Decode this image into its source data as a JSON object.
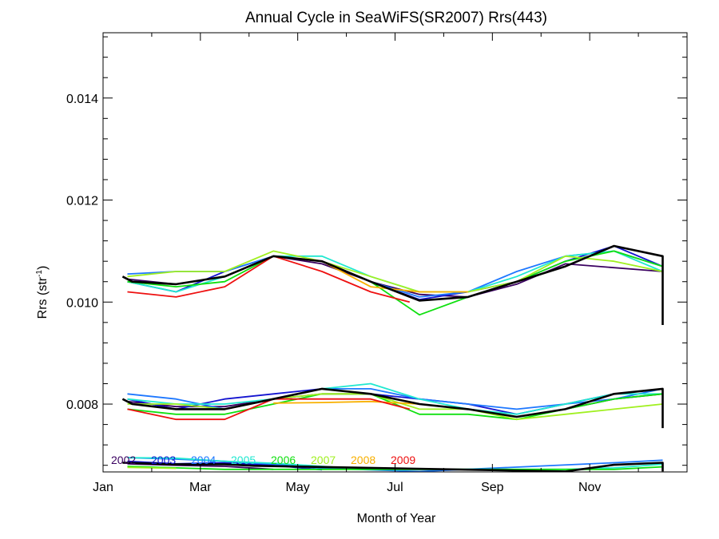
{
  "chart_data": {
    "type": "line",
    "title": "Annual Cycle in SeaWiFS(SR2007) Rrs(443)",
    "xlabel": "Month of Year",
    "ylabel_main": "Rrs (str",
    "ylabel_sup": "-1",
    "ylabel_close": ")",
    "xlim": [
      0,
      12
    ],
    "ylim": [
      0.00667,
      0.01528
    ],
    "x_ticks": [
      {
        "value": 0,
        "label": "Jan"
      },
      {
        "value": 2,
        "label": "Mar"
      },
      {
        "value": 4,
        "label": "May"
      },
      {
        "value": 6,
        "label": "Jul"
      },
      {
        "value": 8,
        "label": "Sep"
      },
      {
        "value": 10,
        "label": "Nov"
      }
    ],
    "y_ticks": [
      {
        "value": 0.008,
        "label": "0.008"
      },
      {
        "value": 0.01,
        "label": "0.010"
      },
      {
        "value": 0.012,
        "label": "0.012"
      },
      {
        "value": 0.014,
        "label": "0.014"
      }
    ],
    "legend_position": "bottom-left",
    "series": [
      {
        "name": "2002",
        "color": "#3a0060",
        "upper": [
          [
            0.5,
            0.01045
          ],
          [
            1.5,
            0.01035
          ],
          [
            2.5,
            0.0105
          ],
          [
            3.5,
            0.0109
          ],
          [
            4.5,
            0.01075
          ],
          [
            5.5,
            0.0104
          ],
          [
            6.5,
            0.01015
          ],
          [
            7.5,
            0.0101
          ],
          [
            8.5,
            0.01035
          ],
          [
            9.5,
            0.01075
          ],
          [
            11.5,
            0.0106
          ]
        ],
        "middle": [
          [
            0.5,
            0.00805
          ],
          [
            1.5,
            0.00795
          ],
          [
            2.5,
            0.00795
          ],
          [
            3.5,
            0.0081
          ],
          [
            4.5,
            0.0082
          ],
          [
            5.5,
            0.0082
          ],
          [
            6.5,
            0.008
          ],
          [
            7.5,
            0.0079
          ],
          [
            8.5,
            0.00775
          ],
          [
            9.5,
            0.0079
          ],
          [
            10.5,
            0.0081
          ],
          [
            11.5,
            0.0082
          ]
        ],
        "lower": [
          [
            0.5,
            0.00683
          ],
          [
            1.5,
            0.0068
          ],
          [
            2.5,
            0.00678
          ],
          [
            3.5,
            0.00672
          ]
        ]
      },
      {
        "name": "2003",
        "color": "#1414d0",
        "upper": [
          [
            0.5,
            0.0104
          ],
          [
            1.5,
            0.0102
          ],
          [
            2.5,
            0.0106
          ],
          [
            3.5,
            0.0109
          ],
          [
            4.5,
            0.0108
          ],
          [
            5.5,
            0.0104
          ],
          [
            6.5,
            0.01005
          ],
          [
            7.5,
            0.0102
          ],
          [
            8.5,
            0.0104
          ],
          [
            9.5,
            0.0108
          ],
          [
            10.5,
            0.0111
          ],
          [
            11.5,
            0.0107
          ]
        ],
        "middle": [
          [
            0.5,
            0.0081
          ],
          [
            1.5,
            0.0079
          ],
          [
            2.5,
            0.0081
          ],
          [
            3.5,
            0.0082
          ],
          [
            4.5,
            0.0083
          ],
          [
            5.5,
            0.0082
          ],
          [
            6.5,
            0.0081
          ],
          [
            7.5,
            0.008
          ],
          [
            8.5,
            0.0078
          ],
          [
            9.5,
            0.008
          ],
          [
            10.5,
            0.0082
          ],
          [
            11.5,
            0.0083
          ]
        ],
        "lower": [
          [
            0.5,
            0.00688
          ],
          [
            1.5,
            0.00683
          ],
          [
            2.5,
            0.00685
          ],
          [
            3.5,
            0.0068
          ],
          [
            4.5,
            0.00671
          ]
        ]
      },
      {
        "name": "2004",
        "color": "#1e78ff",
        "upper": [
          [
            0.5,
            0.01055
          ],
          [
            1.5,
            0.0106
          ],
          [
            2.5,
            0.0106
          ],
          [
            3.5,
            0.0109
          ],
          [
            4.5,
            0.0108
          ],
          [
            5.5,
            0.0104
          ],
          [
            6.5,
            0.0101
          ],
          [
            7.5,
            0.0102
          ],
          [
            8.5,
            0.0106
          ],
          [
            9.5,
            0.0109
          ],
          [
            10.5,
            0.011
          ],
          [
            11.5,
            0.0107
          ]
        ],
        "middle": [
          [
            0.5,
            0.0082
          ],
          [
            1.5,
            0.0081
          ],
          [
            2.5,
            0.0079
          ],
          [
            3.5,
            0.0081
          ],
          [
            4.5,
            0.0083
          ],
          [
            5.5,
            0.0083
          ],
          [
            6.5,
            0.0081
          ],
          [
            7.5,
            0.008
          ],
          [
            8.5,
            0.0079
          ],
          [
            9.5,
            0.008
          ],
          [
            10.5,
            0.0081
          ],
          [
            11.5,
            0.0083
          ]
        ],
        "lower": [
          [
            0.5,
            0.00695
          ],
          [
            1.5,
            0.00692
          ],
          [
            2.5,
            0.00688
          ],
          [
            3.5,
            0.00682
          ],
          [
            4.5,
            0.00674
          ],
          [
            6.5,
            0.00668
          ],
          [
            10.5,
            0.00685
          ],
          [
            11.5,
            0.0069
          ]
        ]
      },
      {
        "name": "2005",
        "color": "#20e8d0",
        "upper": [
          [
            0.5,
            0.0104
          ],
          [
            1.5,
            0.0102
          ],
          [
            2.5,
            0.0105
          ],
          [
            3.5,
            0.0109
          ],
          [
            4.5,
            0.0109
          ],
          [
            5.5,
            0.0105
          ],
          [
            6.5,
            0.0102
          ],
          [
            7.5,
            0.0102
          ],
          [
            8.5,
            0.0105
          ],
          [
            9.5,
            0.0109
          ],
          [
            10.5,
            0.011
          ],
          [
            11.5,
            0.0106
          ]
        ],
        "middle": [
          [
            0.5,
            0.0081
          ],
          [
            1.5,
            0.008
          ],
          [
            2.5,
            0.008
          ],
          [
            3.5,
            0.0081
          ],
          [
            4.5,
            0.0083
          ],
          [
            5.5,
            0.0084
          ],
          [
            6.5,
            0.0081
          ],
          [
            7.5,
            0.0079
          ],
          [
            8.5,
            0.0078
          ],
          [
            9.5,
            0.008
          ],
          [
            10.5,
            0.0082
          ],
          [
            11.5,
            0.0082
          ]
        ],
        "lower": [
          [
            0.5,
            0.00695
          ],
          [
            1.5,
            0.00694
          ],
          [
            2.5,
            0.00688
          ],
          [
            3.5,
            0.00684
          ],
          [
            4.5,
            0.00678
          ],
          [
            5.5,
            0.00672
          ],
          [
            9.5,
            0.00672
          ],
          [
            10.5,
            0.00675
          ],
          [
            11.5,
            0.00682
          ]
        ]
      },
      {
        "name": "2006",
        "color": "#10e010",
        "upper": [
          [
            0.5,
            0.0104
          ],
          [
            1.5,
            0.0103
          ],
          [
            2.5,
            0.0104
          ],
          [
            3.5,
            0.0109
          ],
          [
            4.5,
            0.0108
          ],
          [
            5.5,
            0.0104
          ],
          [
            6.5,
            0.00975
          ],
          [
            7.5,
            0.0101
          ],
          [
            8.5,
            0.0104
          ],
          [
            9.5,
            0.0108
          ],
          [
            10.5,
            0.011
          ],
          [
            11.5,
            0.0107
          ]
        ],
        "middle": [
          [
            0.5,
            0.0079
          ],
          [
            1.5,
            0.0078
          ],
          [
            2.5,
            0.0078
          ],
          [
            3.5,
            0.008
          ],
          [
            4.5,
            0.0082
          ],
          [
            5.5,
            0.0082
          ],
          [
            6.5,
            0.0078
          ],
          [
            7.5,
            0.0078
          ],
          [
            8.5,
            0.0077
          ],
          [
            9.5,
            0.0079
          ],
          [
            10.5,
            0.0081
          ],
          [
            11.5,
            0.0082
          ]
        ],
        "lower": [
          [
            0.5,
            0.00678
          ],
          [
            1.5,
            0.00675
          ],
          [
            2.5,
            0.00672
          ],
          [
            10.5,
            0.00672
          ],
          [
            11.5,
            0.00677
          ]
        ]
      },
      {
        "name": "2007",
        "color": "#a0f020",
        "upper": [
          [
            0.5,
            0.0105
          ],
          [
            1.5,
            0.0106
          ],
          [
            2.5,
            0.0106
          ],
          [
            3.5,
            0.011
          ],
          [
            4.5,
            0.0108
          ],
          [
            5.5,
            0.0105
          ],
          [
            6.5,
            0.0102
          ],
          [
            7.5,
            0.0102
          ],
          [
            8.5,
            0.0104
          ],
          [
            9.5,
            0.0109
          ],
          [
            10.5,
            0.0108
          ],
          [
            11.5,
            0.0106
          ]
        ],
        "middle": [
          [
            0.5,
            0.008
          ],
          [
            1.5,
            0.008
          ],
          [
            2.5,
            0.0079
          ],
          [
            3.5,
            0.0081
          ],
          [
            4.5,
            0.0082
          ],
          [
            5.5,
            0.0082
          ],
          [
            6.5,
            0.0079
          ],
          [
            7.5,
            0.0079
          ],
          [
            8.5,
            0.0077
          ],
          [
            9.5,
            0.0078
          ],
          [
            10.5,
            0.0079
          ],
          [
            11.5,
            0.008
          ]
        ],
        "lower": [
          [
            0.5,
            0.00676
          ],
          [
            1.5,
            0.00674
          ]
        ]
      },
      {
        "name": "2008",
        "color": "#f8b000",
        "upper": [
          [
            3.5,
            0.0109
          ],
          [
            4.5,
            0.0108
          ],
          [
            5.5,
            0.0103
          ],
          [
            6.5,
            0.0102
          ],
          [
            7.5,
            0.0102
          ]
        ],
        "middle": [
          [
            3.5,
            0.00802
          ],
          [
            4.5,
            0.00803
          ],
          [
            5.5,
            0.00805
          ],
          [
            6.5,
            0.008
          ]
        ],
        "lower": []
      },
      {
        "name": "2009",
        "color": "#ee1010",
        "upper": [
          [
            0.5,
            0.0102
          ],
          [
            1.5,
            0.0101
          ],
          [
            2.5,
            0.0103
          ],
          [
            3.5,
            0.0109
          ],
          [
            4.5,
            0.0106
          ],
          [
            5.5,
            0.0102
          ],
          [
            6.3,
            0.01
          ]
        ],
        "middle": [
          [
            0.5,
            0.0079
          ],
          [
            1.5,
            0.0077
          ],
          [
            2.5,
            0.0077
          ],
          [
            3.5,
            0.0081
          ],
          [
            4.5,
            0.0081
          ],
          [
            5.5,
            0.0081
          ],
          [
            6.3,
            0.0079
          ]
        ],
        "lower": []
      },
      {
        "name": "",
        "color": "#000000",
        "width": 2.6,
        "upper": [
          [
            0.4,
            0.0105
          ],
          [
            0.6,
            0.0104
          ],
          [
            1.5,
            0.01035
          ],
          [
            2.5,
            0.0105
          ],
          [
            3.5,
            0.0109
          ],
          [
            4.5,
            0.0108
          ],
          [
            5.5,
            0.0104
          ],
          [
            6.5,
            0.01003
          ],
          [
            7.5,
            0.0101
          ],
          [
            8.5,
            0.0104
          ],
          [
            9.5,
            0.0107
          ],
          [
            10.5,
            0.0111
          ],
          [
            11.5,
            0.0109
          ],
          [
            11.5,
            0.00955
          ]
        ],
        "middle": [
          [
            0.4,
            0.0081
          ],
          [
            0.6,
            0.008
          ],
          [
            1.5,
            0.0079
          ],
          [
            2.5,
            0.0079
          ],
          [
            3.5,
            0.0081
          ],
          [
            4.5,
            0.0083
          ],
          [
            5.5,
            0.0082
          ],
          [
            6.5,
            0.008
          ],
          [
            7.5,
            0.0079
          ],
          [
            8.5,
            0.00775
          ],
          [
            9.5,
            0.0079
          ],
          [
            10.5,
            0.0082
          ],
          [
            11.5,
            0.0083
          ],
          [
            11.5,
            0.00753
          ]
        ],
        "lower": [
          [
            0.4,
            0.00685
          ],
          [
            1.5,
            0.00682
          ],
          [
            2.5,
            0.00682
          ],
          [
            3.1,
            0.00679
          ],
          [
            9.5,
            0.00668
          ],
          [
            10.5,
            0.00681
          ],
          [
            11.5,
            0.00685
          ],
          [
            11.5,
            0.00668
          ]
        ]
      }
    ]
  }
}
